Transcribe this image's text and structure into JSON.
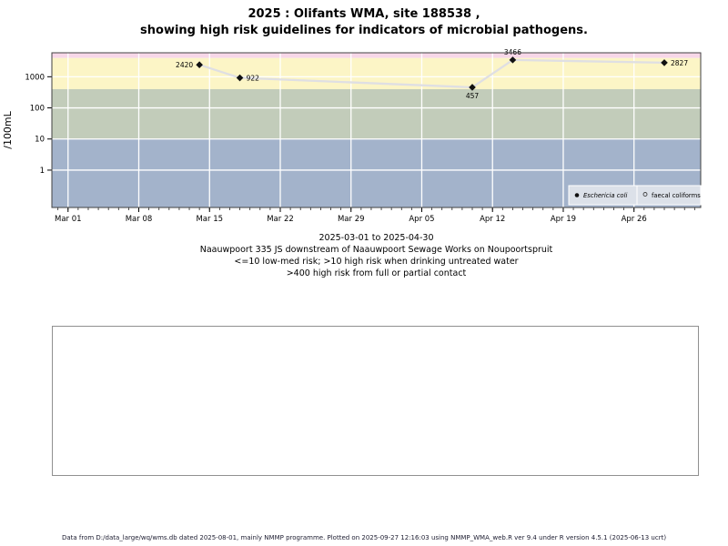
{
  "title": {
    "line1": "2025 : Olifants WMA, site 188538 ,",
    "line2": "showing high risk guidelines for indicators of microbial pathogens."
  },
  "chart_data": {
    "type": "line",
    "title": "2025 : Olifants WMA, site 188538 , showing high risk guidelines for indicators of microbial pathogens.",
    "x_origin": "2025-03-01",
    "x_range_days": [
      -1.6,
      62.6
    ],
    "x_tick_dates": [
      "2025-03-01",
      "2025-03-08",
      "2025-03-15",
      "2025-03-22",
      "2025-03-29",
      "2025-04-05",
      "2025-04-12",
      "2025-04-19",
      "2025-04-26"
    ],
    "x_tick_labels": [
      "Mar 01",
      "Mar 08",
      "Mar 15",
      "Mar 22",
      "Mar 29",
      "Apr 05",
      "Apr 12",
      "Apr 19",
      "Apr 26"
    ],
    "y_axis": {
      "label": "/100mL",
      "scale": "log10",
      "ticks": [
        1,
        10,
        100,
        1000
      ],
      "log_range": [
        -1.2,
        3.77
      ]
    },
    "grid": true,
    "grid_color": "#ffffff",
    "series": [
      {
        "name": "Eschericia coli",
        "marker": "filled-diamond",
        "color": "#111111",
        "line_color": "#dfdfe3",
        "points": [
          {
            "date": "2025-03-14",
            "value": 2420,
            "label": "2420",
            "label_side": "left"
          },
          {
            "date": "2025-03-18",
            "value": 922,
            "label": "922",
            "label_side": "right"
          },
          {
            "date": "2025-04-10",
            "value": 457,
            "label": "457",
            "label_side": "below"
          },
          {
            "date": "2025-04-14",
            "value": 3466,
            "label": "3466",
            "label_side": "above"
          },
          {
            "date": "2025-04-29",
            "value": 2827,
            "label": "2827",
            "label_side": "right"
          }
        ]
      },
      {
        "name": "faecal coliforms",
        "marker": "open-circle",
        "color": "#444444",
        "line_color": "#dfdfe3",
        "points": []
      }
    ],
    "bands": [
      {
        "name": "upper-extreme",
        "from": 4000,
        "to": 5900,
        "color": "#f7d7e8"
      },
      {
        "name": "high-risk-contact",
        "from": 400,
        "to": 4000,
        "color": "#fcf5c6"
      },
      {
        "name": "high-risk-drinking",
        "from": 10,
        "to": 400,
        "color": "#c2ccba"
      },
      {
        "name": "low-med-risk",
        "from": 0.063,
        "to": 10,
        "color": "#a3b3cb"
      }
    ],
    "legend": [
      {
        "label": "Eschericia coli",
        "marker": "filled-circle",
        "italic": true
      },
      {
        "label": "faecal coliforms",
        "marker": "open-circle",
        "italic": false
      }
    ],
    "legend_style": {
      "fill": "#dce1e9",
      "border": "#ffffff"
    },
    "legend_position": "bottom-right-inside"
  },
  "caption": {
    "line1": "2025-03-01 to 2025-04-30",
    "line2": "Naauwpoort 335 JS downstream of Naauwpoort Sewage Works on Noupoortspruit",
    "line3": "<=10 low-med risk; >10 high risk when drinking untreated water",
    "line4": ">400 high risk from full or partial contact"
  },
  "footer": {
    "text": "Data from D:/data_large/wq/wms.db dated 2025-08-01, mainly NMMP programme. Plotted on 2025-09-27 12:16:03 using NMMP_WMA_web.R ver 9.4 under R version 4.5.1 (2025-06-13 ucrt)"
  }
}
